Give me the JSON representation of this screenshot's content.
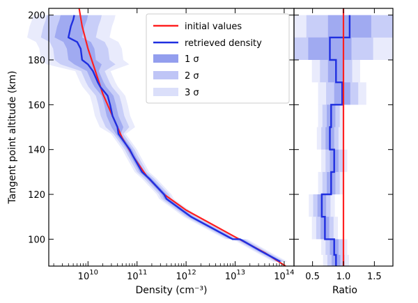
{
  "chart_data": [
    {
      "type": "line",
      "panel": "left",
      "xscale": "log",
      "xlim_exp": [
        9.2,
        14.2
      ],
      "ylim": [
        88,
        203
      ],
      "xlabel": "Density (cm⁻³)",
      "ylabel": "Tangent point altitude (km)",
      "xticks": [
        {
          "base": "10",
          "exp": "10",
          "value_exp": 10
        },
        {
          "base": "10",
          "exp": "11",
          "value_exp": 11
        },
        {
          "base": "10",
          "exp": "12",
          "value_exp": 12
        },
        {
          "base": "10",
          "exp": "13",
          "value_exp": 13
        },
        {
          "base": "10",
          "exp": "14",
          "value_exp": 14
        }
      ],
      "yticks": [
        100,
        120,
        140,
        160,
        180,
        200
      ],
      "series": [
        {
          "name": "initial values",
          "color": "#ff2020",
          "points": [
            [
              14.03,
              88
            ],
            [
              13.6,
              94
            ],
            [
              13.0,
              101
            ],
            [
              12.5,
              107
            ],
            [
              12.0,
              113
            ],
            [
              11.55,
              120
            ],
            [
              11.2,
              128
            ],
            [
              10.95,
              136
            ],
            [
              10.7,
              145
            ],
            [
              10.5,
              155
            ],
            [
              10.3,
              165
            ],
            [
              10.15,
              175
            ],
            [
              10.0,
              185
            ],
            [
              9.88,
              195
            ],
            [
              9.82,
              203
            ]
          ]
        },
        {
          "name": "retrieved density",
          "color": "#1f2fe0",
          "points": [
            [
              13.92,
              90
            ],
            [
              13.5,
              95
            ],
            [
              13.1,
              100
            ],
            [
              12.95,
              100
            ],
            [
              12.1,
              110
            ],
            [
              11.6,
              118
            ],
            [
              11.55,
              120
            ],
            [
              11.25,
              127
            ],
            [
              11.1,
              130
            ],
            [
              10.92,
              137
            ],
            [
              10.85,
              140
            ],
            [
              10.62,
              147
            ],
            [
              10.6,
              150
            ],
            [
              10.5,
              155
            ],
            [
              10.45,
              160
            ],
            [
              10.4,
              164
            ],
            [
              10.25,
              168
            ],
            [
              10.2,
              170
            ],
            [
              10.1,
              175
            ],
            [
              10.0,
              178
            ],
            [
              9.88,
              180
            ],
            [
              9.85,
              185
            ],
            [
              9.78,
              188
            ],
            [
              9.6,
              190
            ],
            [
              9.65,
              195
            ],
            [
              9.7,
              198
            ],
            [
              9.72,
              200
            ]
          ]
        }
      ],
      "bands": [
        {
          "name": "1 σ",
          "color": "#6f7ee8",
          "opacity": 0.45
        },
        {
          "name": "2 σ",
          "color": "#7f8cee",
          "opacity": 0.3
        },
        {
          "name": "3 σ",
          "color": "#99a3f2",
          "opacity": 0.22
        }
      ],
      "legend": {
        "location": "top-right",
        "entries": [
          "initial values",
          "retrieved density",
          "1 σ",
          "2 σ",
          "3 σ"
        ]
      }
    },
    {
      "type": "line",
      "panel": "right",
      "xlim": [
        0.2,
        1.8
      ],
      "ylim": [
        88,
        203
      ],
      "xlabel": "Ratio",
      "xticks": [
        "0.5",
        "1.0",
        "1.5"
      ],
      "xtick_values": [
        0.5,
        1.0,
        1.5
      ],
      "reference_line": {
        "x": 1.0,
        "color": "#ff2020"
      },
      "ratio_steps": [
        {
          "y0": 88,
          "y1": 93,
          "ratio": 0.88
        },
        {
          "y0": 93,
          "y1": 100,
          "ratio": 0.85
        },
        {
          "y0": 100,
          "y1": 110,
          "ratio": 0.7
        },
        {
          "y0": 110,
          "y1": 120,
          "ratio": 0.65
        },
        {
          "y0": 120,
          "y1": 130,
          "ratio": 0.8
        },
        {
          "y0": 130,
          "y1": 140,
          "ratio": 0.85
        },
        {
          "y0": 140,
          "y1": 150,
          "ratio": 0.78
        },
        {
          "y0": 150,
          "y1": 160,
          "ratio": 0.8
        },
        {
          "y0": 160,
          "y1": 170,
          "ratio": 0.98
        },
        {
          "y0": 170,
          "y1": 180,
          "ratio": 0.88
        },
        {
          "y0": 180,
          "y1": 190,
          "ratio": 0.78
        },
        {
          "y0": 190,
          "y1": 200,
          "ratio": 1.1
        }
      ]
    }
  ]
}
